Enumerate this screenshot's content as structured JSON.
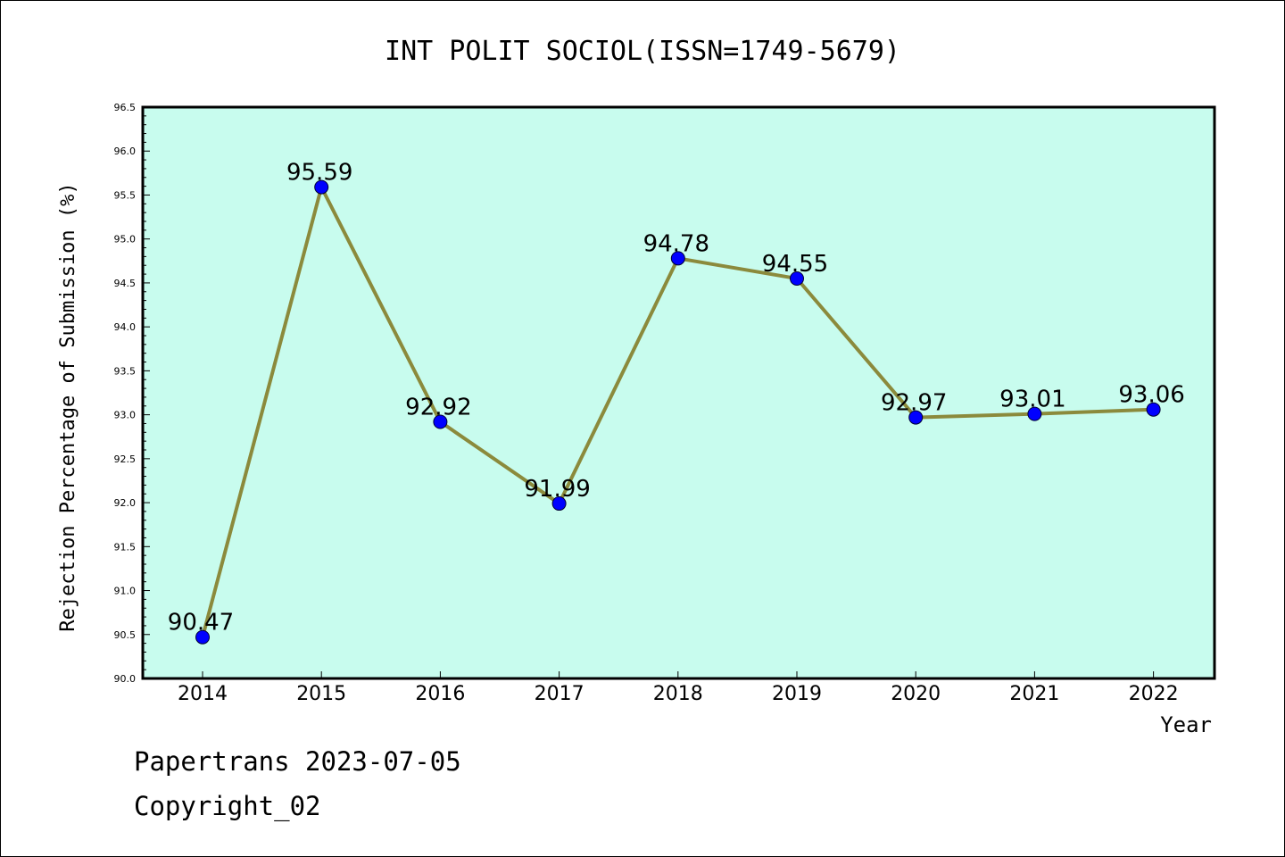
{
  "chart_data": {
    "type": "line",
    "title": "INT POLIT SOCIOL(ISSN=1749-5679)",
    "xlabel": "Year",
    "ylabel": "Rejection Percentage of Submission (%)",
    "categories": [
      "2014",
      "2015",
      "2016",
      "2017",
      "2018",
      "2019",
      "2020",
      "2021",
      "2022"
    ],
    "values": [
      90.47,
      95.59,
      92.92,
      91.99,
      94.78,
      94.55,
      92.97,
      93.01,
      93.06
    ],
    "data_labels": [
      "90.47",
      "95.59",
      "92.92",
      "91.99",
      "94.78",
      "94.55",
      "92.97",
      "93.01",
      "93.06"
    ],
    "ylim": [
      90.0,
      96.5
    ],
    "yticks": [
      "90.0",
      "90.5",
      "91.0",
      "91.5",
      "92.0",
      "92.5",
      "93.0",
      "93.5",
      "94.0",
      "94.5",
      "95.0",
      "95.5",
      "96.0",
      "96.5"
    ],
    "grid": false,
    "legend": "none",
    "colors": {
      "plot_background": "#c8fcee",
      "line": "#8b8a3c",
      "marker": "#0000ff"
    }
  },
  "footer": {
    "line1": "Papertrans 2023-07-05",
    "line2": "Copyright_02"
  }
}
